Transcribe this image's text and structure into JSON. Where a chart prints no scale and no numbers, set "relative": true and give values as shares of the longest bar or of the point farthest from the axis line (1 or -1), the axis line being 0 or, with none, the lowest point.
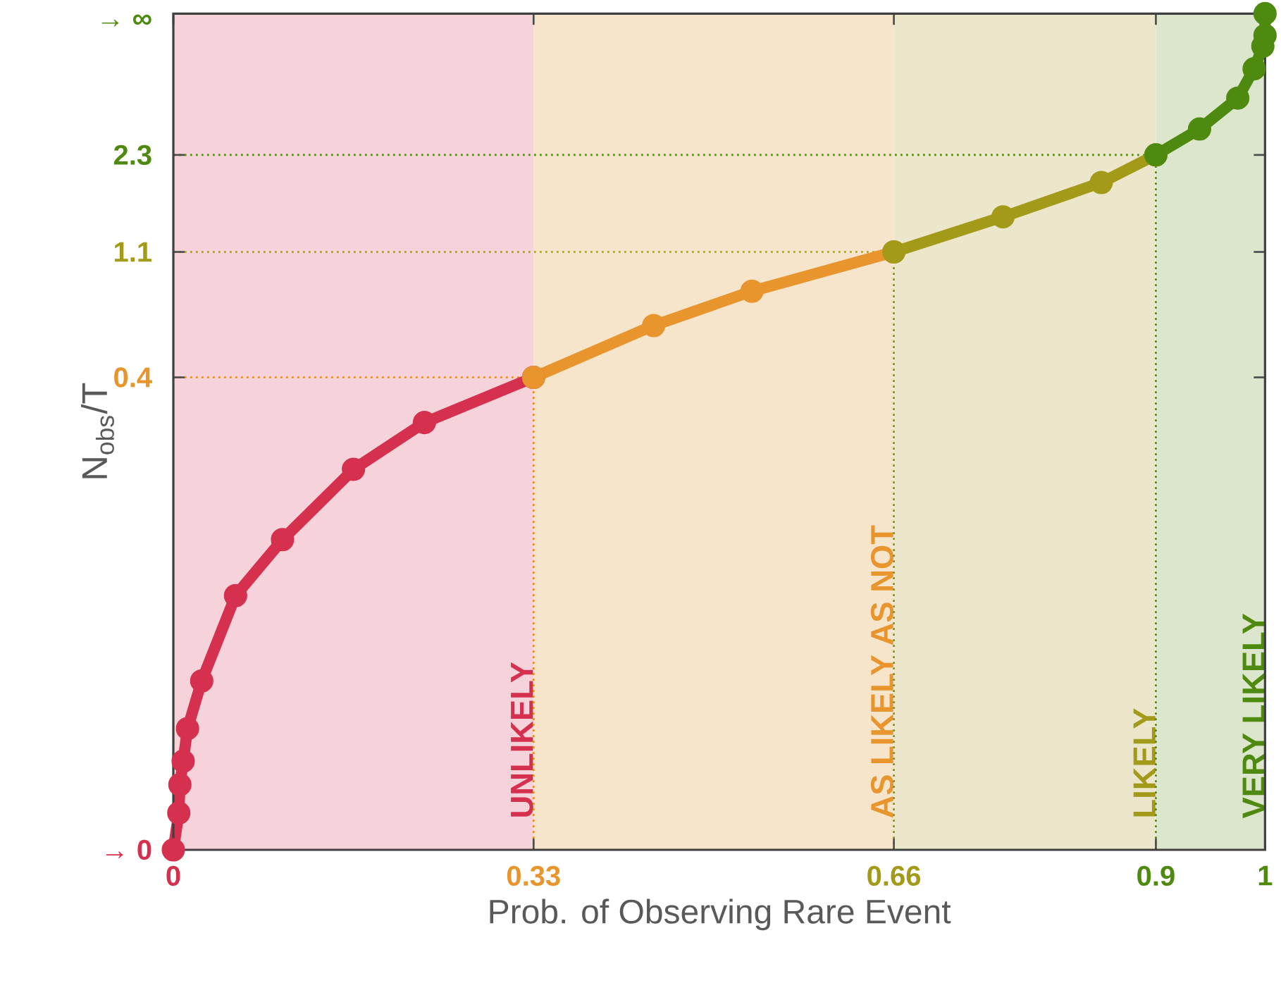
{
  "chart_data": {
    "type": "line",
    "xlabel": "Prob. of Observing Rare Event",
    "ylabel": "N$_{obs}$/T",
    "xlim": [
      0,
      1
    ],
    "ylim": [
      0,
      1
    ],
    "xticks": [
      0,
      0.33,
      0.66,
      0.9,
      1
    ],
    "relative": true,
    "annotations": [
      "→ 0",
      "0.4",
      "1.1",
      "2.3",
      "→ ∞"
    ],
    "marker": "circle",
    "series": [
      {
        "color": "#d6304f",
        "x": [
          0,
          0.005,
          0.006,
          0.009,
          0.013,
          0.026,
          0.057,
          0.1,
          0.165,
          0.23,
          0.33
        ],
        "values": [
          0,
          0.044,
          0.078,
          0.106,
          0.145,
          0.202,
          0.304,
          0.371,
          0.455,
          0.511,
          0.565
        ]
      },
      {
        "color": "#e8952e",
        "x": [
          0.33,
          0.44,
          0.53,
          0.66
        ],
        "values": [
          0.565,
          0.627,
          0.668,
          0.715
        ]
      },
      {
        "color": "#a39a1a",
        "x": [
          0.66,
          0.76,
          0.85,
          0.9
        ],
        "values": [
          0.715,
          0.757,
          0.798,
          0.831
        ]
      },
      {
        "color": "#4f8a10",
        "x": [
          0.9,
          0.94,
          0.975,
          0.99,
          0.998,
          1,
          1
        ],
        "values": [
          0.831,
          0.862,
          0.899,
          0.934,
          0.961,
          0.974,
          1.0
        ]
      }
    ],
    "bands": [
      {
        "axis": "x",
        "from": 0,
        "to": 0.33,
        "label": "UNLIKELY",
        "color": "#f6d3da"
      },
      {
        "axis": "x",
        "from": 0.33,
        "to": 0.66,
        "label": "AS LIKELY AS NOT",
        "color": "#f6e5cb"
      },
      {
        "axis": "x",
        "from": 0.66,
        "to": 0.9,
        "label": "LIKELY",
        "color": "#ece7ca"
      },
      {
        "axis": "x",
        "from": 0.9,
        "to": 1,
        "label": "VERY LIKELY",
        "color": "#dce6cc"
      }
    ],
    "ref_lines": [
      {
        "axis": "x",
        "value": 0.33,
        "color": "#e08a10",
        "line_style": "dotted"
      },
      {
        "axis": "x",
        "value": 0.66,
        "color": "#8a8a10",
        "line_style": "dotted"
      },
      {
        "axis": "x",
        "value": 0.9,
        "color": "#4f8a10",
        "line_style": "dotted"
      },
      {
        "axis": "y",
        "value": 0.565,
        "color": "#e08a10",
        "line_style": "dotted"
      },
      {
        "axis": "y",
        "value": 0.715,
        "color": "#a39a1a",
        "line_style": "dotted"
      },
      {
        "axis": "y",
        "value": 0.831,
        "color": "#4f8a10",
        "line_style": "dotted"
      }
    ]
  }
}
